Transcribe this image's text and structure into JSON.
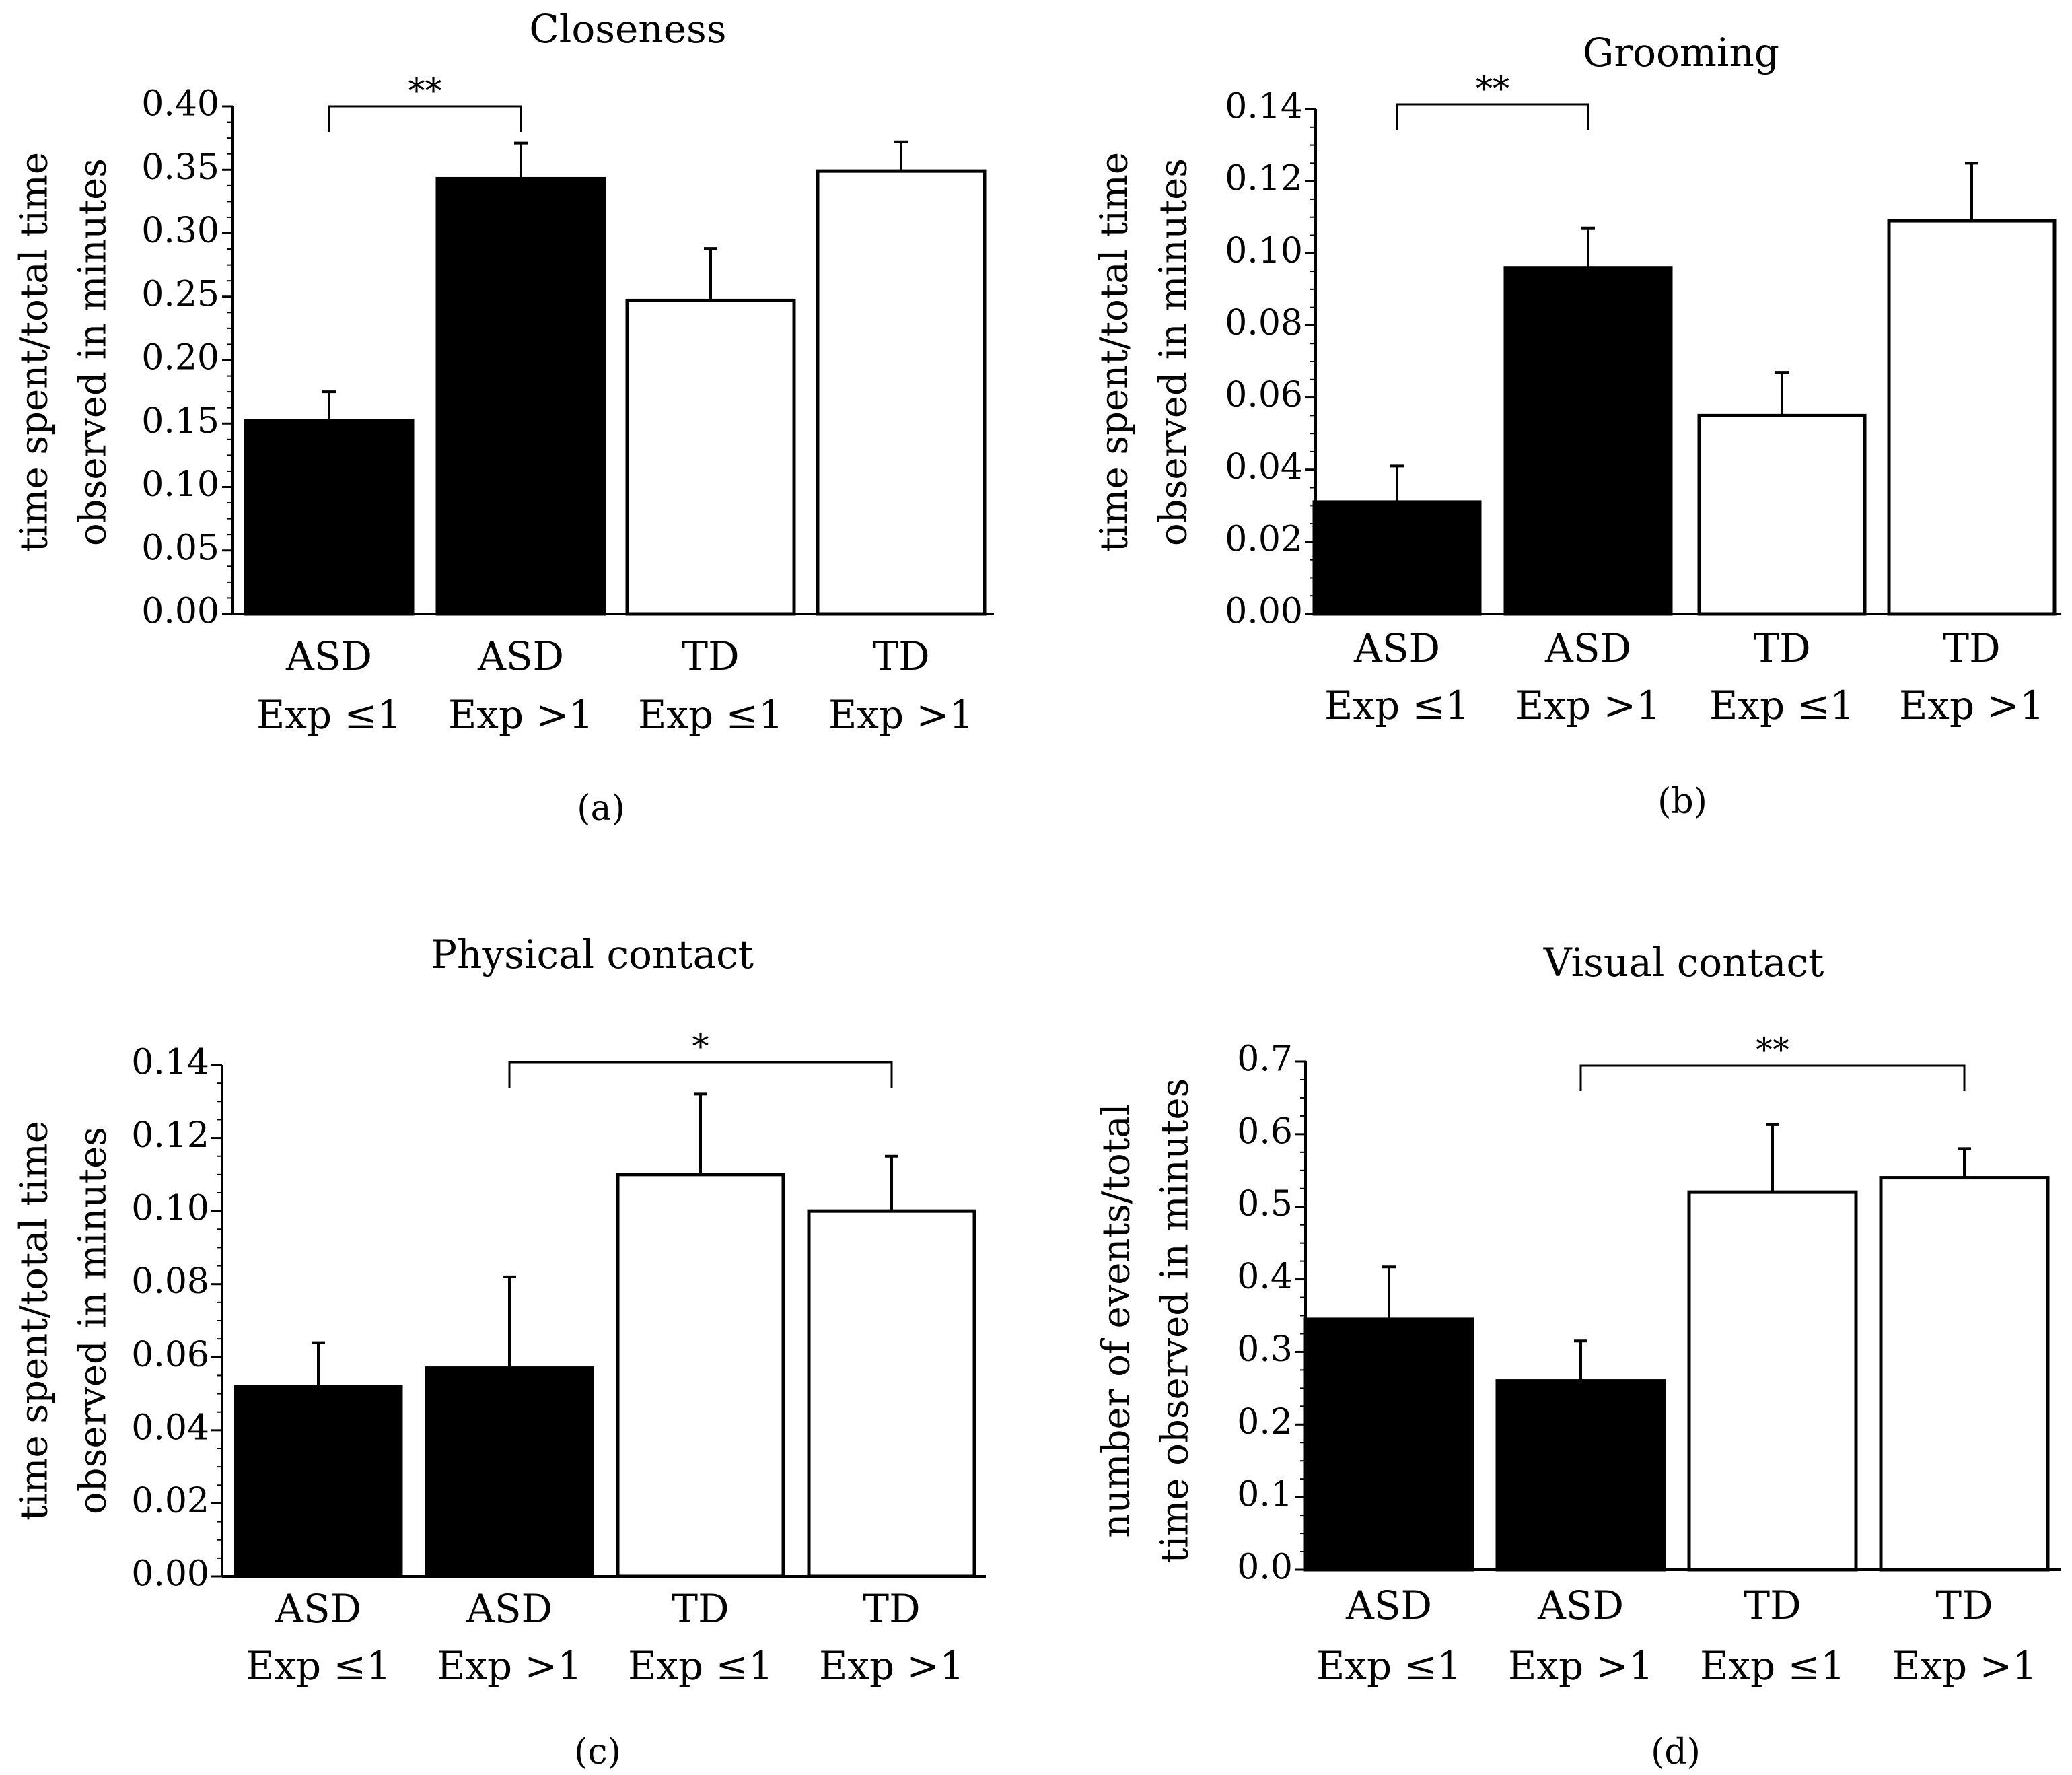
{
  "chart_data": [
    {
      "panel": "(a)",
      "type": "bar",
      "title": "Closeness",
      "ylabel_lines": [
        "time spent/total time",
        "observed in minutes"
      ],
      "categories": [
        [
          "ASD",
          "Exp ≤1"
        ],
        [
          "ASD",
          "Exp >1"
        ],
        [
          "TD",
          "Exp ≤1"
        ],
        [
          "TD",
          "Exp >1"
        ]
      ],
      "values": [
        0.152,
        0.343,
        0.247,
        0.349
      ],
      "errors": [
        0.023,
        0.028,
        0.041,
        0.023
      ],
      "fills": [
        "#000000",
        "#000000",
        "#ffffff",
        "#ffffff"
      ],
      "ylim": [
        0,
        0.4
      ],
      "yticks": [
        0.0,
        0.05,
        0.1,
        0.15,
        0.2,
        0.25,
        0.3,
        0.35,
        0.4
      ],
      "ytick_labels": [
        "0.00",
        "0.05",
        "0.10",
        "0.15",
        "0.20",
        "0.25",
        "0.30",
        "0.35",
        "0.40"
      ],
      "significance": {
        "from": 0,
        "to": 1,
        "label": "**"
      }
    },
    {
      "panel": "(b)",
      "type": "bar",
      "title": "Grooming",
      "ylabel_lines": [
        "time spent/total time",
        "observed in minutes"
      ],
      "categories": [
        [
          "ASD",
          "Exp ≤1"
        ],
        [
          "ASD",
          "Exp >1"
        ],
        [
          "TD",
          "Exp ≤1"
        ],
        [
          "TD",
          "Exp >1"
        ]
      ],
      "values": [
        0.031,
        0.096,
        0.055,
        0.109
      ],
      "errors": [
        0.01,
        0.011,
        0.012,
        0.016
      ],
      "fills": [
        "#000000",
        "#000000",
        "#ffffff",
        "#ffffff"
      ],
      "ylim": [
        0,
        0.14
      ],
      "yticks": [
        0.0,
        0.02,
        0.04,
        0.06,
        0.08,
        0.1,
        0.12,
        0.14
      ],
      "ytick_labels": [
        "0.00",
        "0.02",
        "0.04",
        "0.06",
        "0.08",
        "0.10",
        "0.12",
        "0.14"
      ],
      "significance": {
        "from": 0,
        "to": 1,
        "label": "**"
      }
    },
    {
      "panel": "(c)",
      "type": "bar",
      "title": "Physical contact",
      "ylabel_lines": [
        "time spent/total time",
        "observed in minutes"
      ],
      "categories": [
        [
          "ASD",
          "Exp ≤1"
        ],
        [
          "ASD",
          "Exp >1"
        ],
        [
          "TD",
          "Exp ≤1"
        ],
        [
          "TD",
          "Exp >1"
        ]
      ],
      "values": [
        0.052,
        0.057,
        0.11,
        0.1
      ],
      "errors": [
        0.012,
        0.025,
        0.022,
        0.015
      ],
      "fills": [
        "#000000",
        "#000000",
        "#ffffff",
        "#ffffff"
      ],
      "ylim": [
        0,
        0.14
      ],
      "yticks": [
        0.0,
        0.02,
        0.04,
        0.06,
        0.08,
        0.1,
        0.12,
        0.14
      ],
      "ytick_labels": [
        "0.00",
        "0.02",
        "0.04",
        "0.06",
        "0.08",
        "0.10",
        "0.12",
        "0.14"
      ],
      "significance": {
        "from": 1,
        "to": 3,
        "label": "*"
      }
    },
    {
      "panel": "(d)",
      "type": "bar",
      "title": "Visual contact",
      "ylabel_lines": [
        "number of events/total",
        "time observed in minutes"
      ],
      "categories": [
        [
          "ASD",
          "Exp ≤1"
        ],
        [
          "ASD",
          "Exp >1"
        ],
        [
          "TD",
          "Exp ≤1"
        ],
        [
          "TD",
          "Exp >1"
        ]
      ],
      "values": [
        0.345,
        0.26,
        0.52,
        0.54
      ],
      "errors": [
        0.072,
        0.055,
        0.093,
        0.04
      ],
      "fills": [
        "#000000",
        "#000000",
        "#ffffff",
        "#ffffff"
      ],
      "ylim": [
        0,
        0.7
      ],
      "yticks": [
        0.0,
        0.1,
        0.2,
        0.3,
        0.4,
        0.5,
        0.6,
        0.7
      ],
      "ytick_labels": [
        "0.0",
        "0.1",
        "0.2",
        "0.3",
        "0.4",
        "0.5",
        "0.6",
        "0.7"
      ],
      "significance": {
        "from": 1,
        "to": 3,
        "label": "**"
      }
    }
  ]
}
